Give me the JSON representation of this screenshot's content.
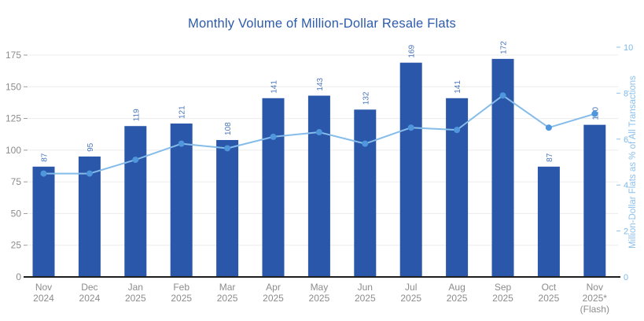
{
  "title": "Monthly Volume of Million-Dollar Resale Flats",
  "colors": {
    "background": "#ffffff",
    "title": "#2d5bab",
    "bar": "#2a57a9",
    "bar_value_label": "#4a76ba",
    "line": "#85bcea",
    "marker": "#4f96dc",
    "left_axis_text": "#8c8c8c",
    "x_axis_text": "#8c8c8c",
    "right_axis_text": "#7db9ea",
    "right_axis_title": "#8cc0ec",
    "gridline": "#ececec",
    "axis_line": "#1f1f1f",
    "tick_dash_left": "#9a9a9a",
    "tick_dash_right": "#8fc0ec"
  },
  "chart_data": {
    "type": "bar",
    "title": "Monthly Volume of Million-Dollar Resale Flats",
    "categories": [
      [
        "Nov",
        "2024"
      ],
      [
        "Dec",
        "2024"
      ],
      [
        "Jan",
        "2025"
      ],
      [
        "Feb",
        "2025"
      ],
      [
        "Mar",
        "2025"
      ],
      [
        "Apr",
        "2025"
      ],
      [
        "May",
        "2025"
      ],
      [
        "Jun",
        "2025"
      ],
      [
        "Jul",
        "2025"
      ],
      [
        "Aug",
        "2025"
      ],
      [
        "Sep",
        "2025"
      ],
      [
        "Oct",
        "2025"
      ],
      [
        "Nov",
        "2025*",
        "(Flash)"
      ]
    ],
    "series": [
      {
        "name": "Monthly volume of million-dollar resale flats",
        "type": "bar",
        "axis": "left",
        "values": [
          87,
          95,
          119,
          121,
          108,
          141,
          143,
          132,
          169,
          141,
          172,
          87,
          120
        ]
      },
      {
        "name": "Million-Dollar Flats as % of All Transactions",
        "type": "line",
        "axis": "right",
        "values": [
          4.5,
          4.5,
          5.1,
          5.8,
          5.6,
          6.1,
          6.3,
          5.8,
          6.5,
          6.4,
          7.9,
          6.5,
          7.1
        ]
      }
    ],
    "left_axis": {
      "min": 0,
      "max": 175,
      "ticks": [
        0,
        25,
        50,
        75,
        100,
        125,
        150,
        175
      ],
      "label": ""
    },
    "right_axis": {
      "min": 0,
      "max": 10,
      "ticks": [
        0,
        2,
        4,
        6,
        8,
        10
      ],
      "label": "Million-Dollar Flats as % of All Transactions"
    },
    "grid": true,
    "legend": "none",
    "bar_value_labels_rotated": true
  }
}
